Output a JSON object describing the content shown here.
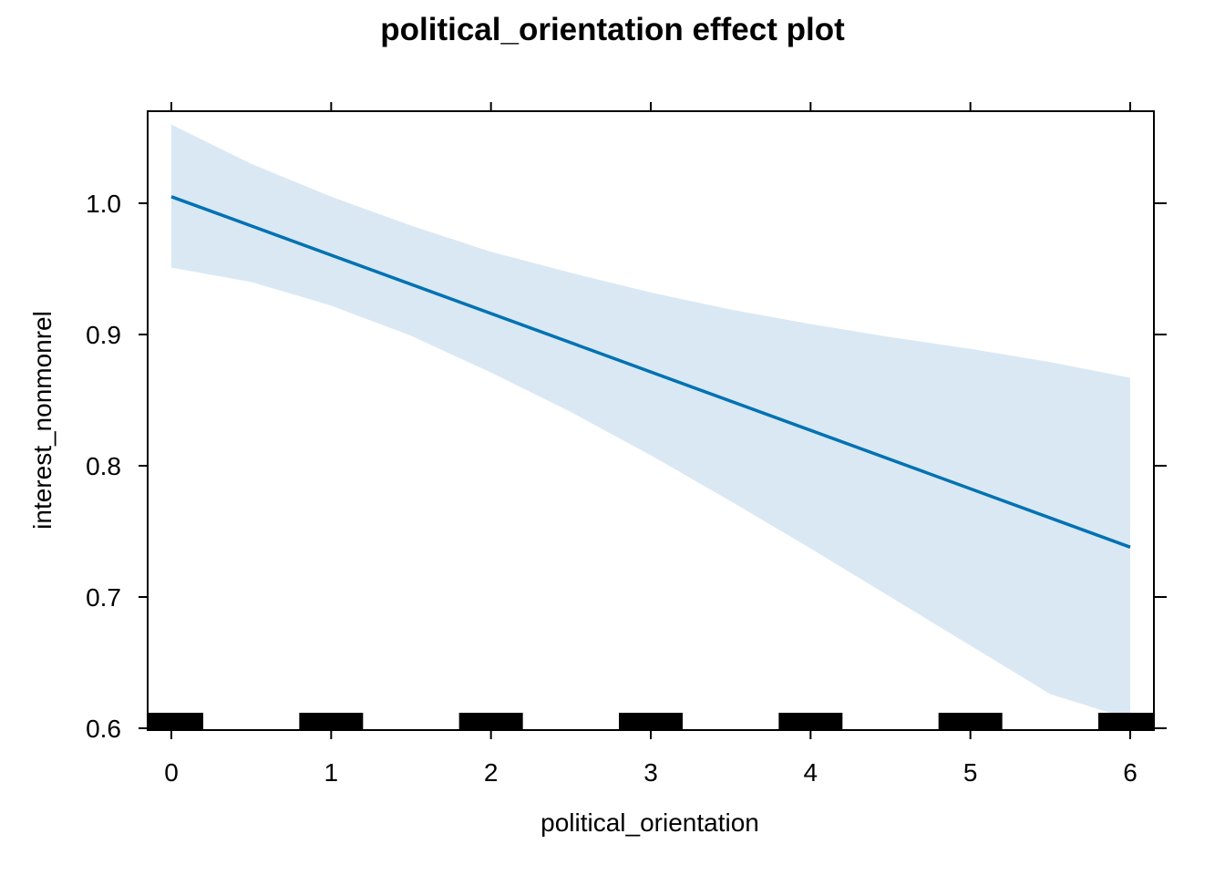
{
  "chart_data": {
    "type": "line",
    "title": "political_orientation effect plot",
    "xlabel": "political_orientation",
    "ylabel": "interest_nonmonrel",
    "xlim": [
      -0.15,
      6.15
    ],
    "ylim": [
      0.6,
      1.07
    ],
    "x_ticks": [
      0,
      1,
      2,
      3,
      4,
      5,
      6
    ],
    "x_tick_labels": [
      "0",
      "1",
      "2",
      "3",
      "4",
      "5",
      "6"
    ],
    "y_ticks": [
      0.6,
      0.7,
      0.8,
      0.9,
      1.0
    ],
    "y_tick_labels": [
      "0.6",
      "0.7",
      "0.8",
      "0.9",
      "1.0"
    ],
    "series": [
      {
        "x": [
          0,
          6
        ],
        "y": [
          1.005,
          0.738
        ]
      }
    ],
    "confidence_band": {
      "x": [
        0,
        0.5,
        1,
        1.5,
        2,
        2.5,
        3,
        3.5,
        4,
        4.5,
        5,
        5.5,
        6
      ],
      "lower": [
        0.951,
        0.94,
        0.922,
        0.899,
        0.871,
        0.841,
        0.808,
        0.773,
        0.737,
        0.7,
        0.663,
        0.626,
        0.607
      ],
      "upper": [
        1.06,
        1.03,
        1.005,
        0.983,
        0.963,
        0.947,
        0.932,
        0.919,
        0.908,
        0.898,
        0.889,
        0.879,
        0.867
      ]
    },
    "rug": [
      0,
      1,
      2,
      3,
      4,
      5,
      6
    ],
    "grid": false,
    "colors": {
      "line": "#0072B2",
      "band": "#DAE8F4",
      "rug": "#000000"
    }
  }
}
